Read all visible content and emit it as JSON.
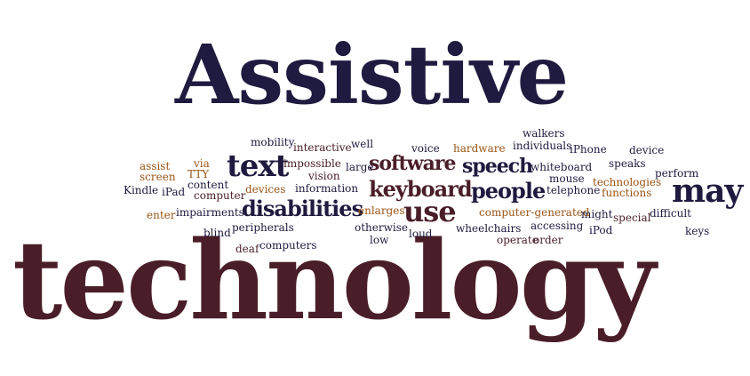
{
  "colors": {
    "navy": "#1f1a3f",
    "maroon": "#4a1e28",
    "orange": "#9a5416",
    "background": "#ffffff"
  },
  "words": {
    "assistive": "Assistive",
    "technology": "technology",
    "text": "text",
    "software": "software",
    "speech": "speech",
    "keyboard": "keyboard",
    "people": "people",
    "use": "use",
    "may": "may",
    "disabilities": "disabilities",
    "walkers": "walkers",
    "mobility": "mobility",
    "interactive": "interactive",
    "well": "well",
    "voice": "voice",
    "hardware": "hardware",
    "individuals": "individuals",
    "iphone": "iPhone",
    "device": "device",
    "assist": "assist",
    "via": "via",
    "impossible": "impossible",
    "large": "large",
    "whiteboard": "whiteboard",
    "speaks": "speaks",
    "screen": "screen",
    "tty": "TTY",
    "vision": "vision",
    "mouse": "mouse",
    "technologies": "technologies",
    "perform": "perform",
    "content": "content",
    "kindle": "Kindle",
    "ipad": "iPad",
    "computer": "computer",
    "devices": "devices",
    "information": "information",
    "telephone": "telephone",
    "functions": "functions",
    "enter": "enter",
    "impairments": "impairments",
    "enlarges": "enlarges",
    "computer_generated": "computer-generated",
    "might": "might",
    "special": "special",
    "difficult": "difficult",
    "blind": "blind",
    "peripherals": "peripherals",
    "otherwise": "otherwise",
    "wheelchairs": "wheelchairs",
    "accessing": "accessing",
    "ipod": "iPod",
    "keys": "keys",
    "low": "low",
    "loud": "loud",
    "operate": "operate",
    "order": "order",
    "deaf": "deaf",
    "computers": "computers"
  }
}
